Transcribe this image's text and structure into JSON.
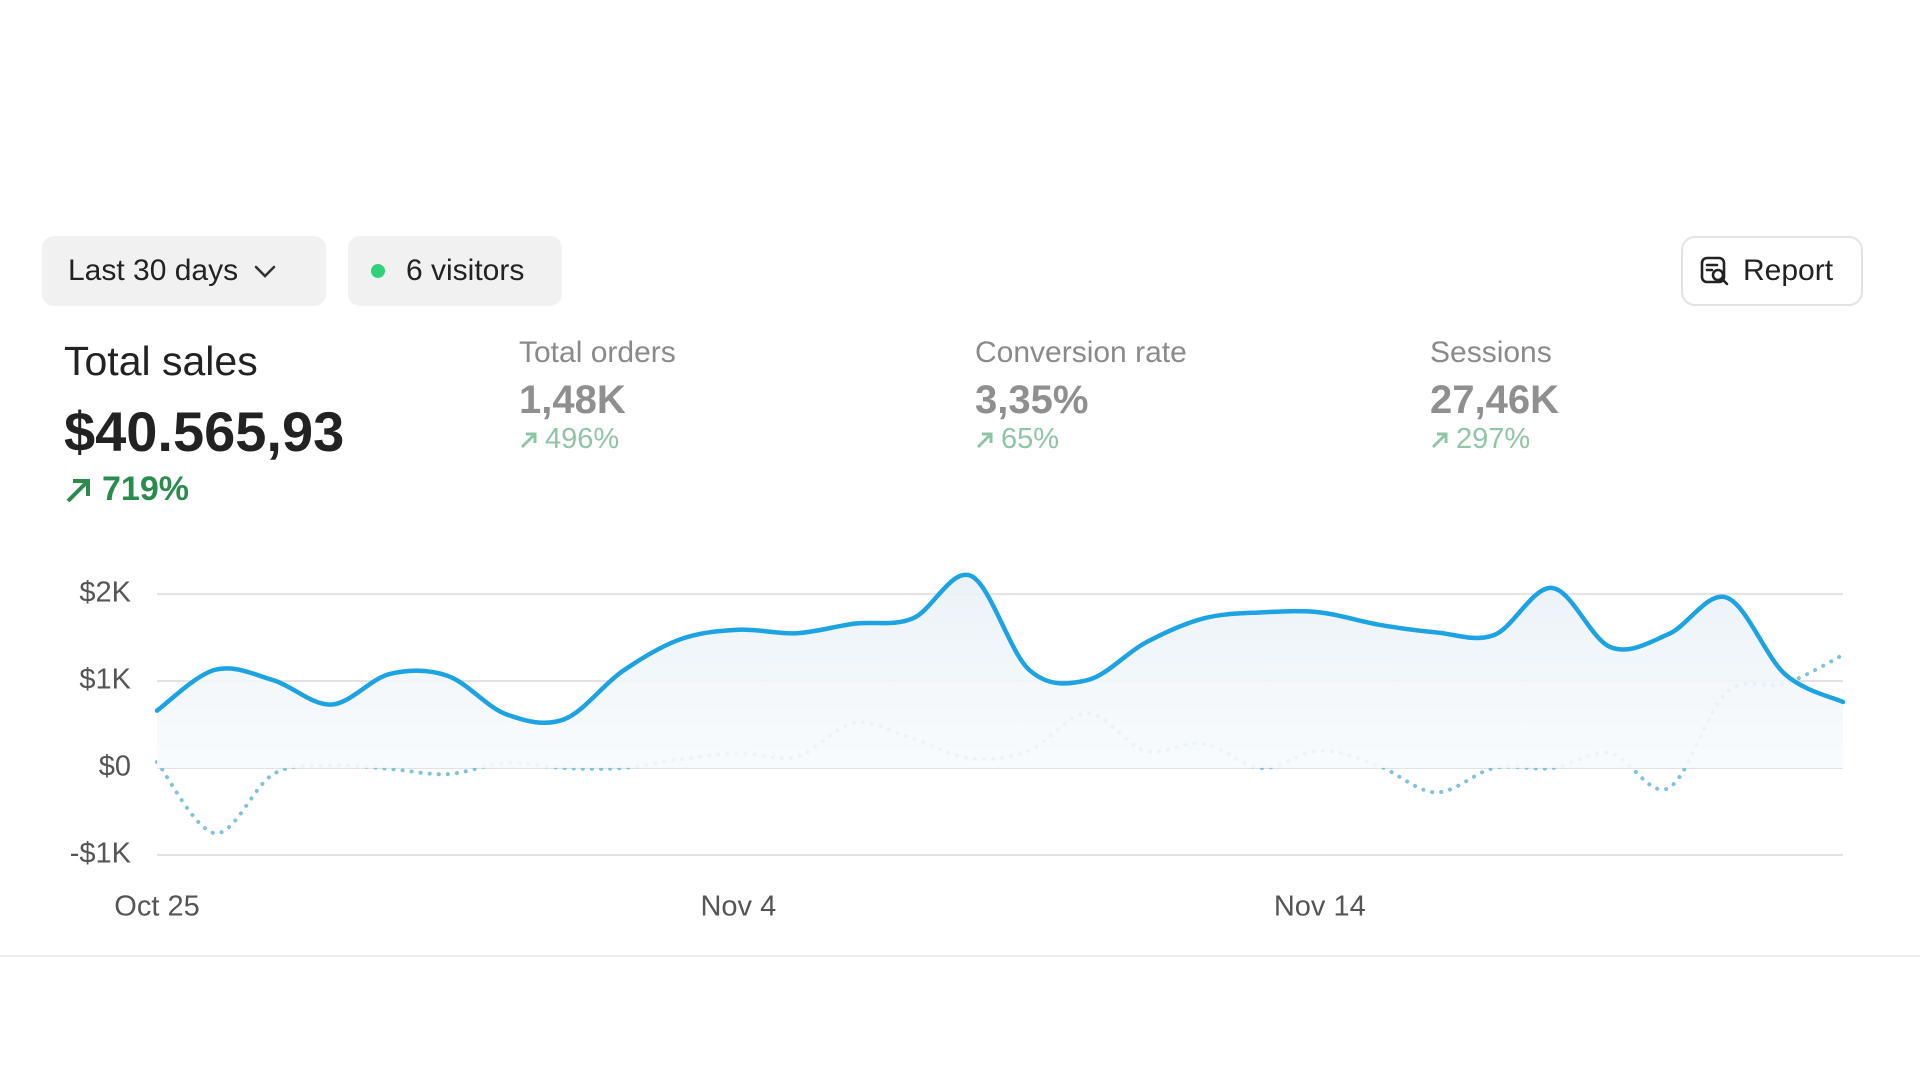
{
  "controls": {
    "range": "Last 30 days",
    "visitors": "6 visitors",
    "report": "Report"
  },
  "metrics": [
    {
      "label": "Total sales",
      "value": "$40.565,93",
      "change": "719%"
    },
    {
      "label": "Total orders",
      "value": "1,48K",
      "change": "496%"
    },
    {
      "label": "Conversion rate",
      "value": "3,35%",
      "change": "65%"
    },
    {
      "label": "Sessions",
      "value": "27,46K",
      "change": "297%"
    }
  ],
  "chart_data": {
    "type": "line",
    "categories": [
      "Oct 25",
      null,
      null,
      null,
      null,
      null,
      null,
      null,
      null,
      null,
      "Nov 4",
      null,
      null,
      null,
      null,
      null,
      null,
      null,
      null,
      null,
      "Nov 14",
      null,
      null,
      null,
      null,
      null,
      null,
      null,
      null,
      null
    ],
    "series": [
      {
        "color": "#1ea3e2",
        "values": [
          660,
          1130,
          1010,
          730,
          1080,
          1060,
          620,
          560,
          1110,
          1480,
          1590,
          1550,
          1660,
          1720,
          2210,
          1130,
          1010,
          1440,
          1720,
          1790,
          1790,
          1650,
          1560,
          1530,
          2070,
          1390,
          1540,
          1960,
          1080,
          760
        ]
      },
      {
        "color": "#7fc3da",
        "style": "dotted",
        "values": [
          70,
          -750,
          -70,
          30,
          -10,
          -70,
          60,
          0,
          0,
          100,
          170,
          130,
          520,
          340,
          110,
          200,
          630,
          200,
          280,
          0,
          200,
          30,
          -280,
          0,
          0,
          170,
          -230,
          870,
          970,
          1300
        ]
      }
    ],
    "ylim": [
      -1000,
      2300
    ],
    "yticks": [
      {
        "value": 2000,
        "label": "$2K"
      },
      {
        "value": 1000,
        "label": "$1K"
      },
      {
        "value": 0,
        "label": "$0"
      },
      {
        "value": -1000,
        "label": "-$1K"
      }
    ],
    "grid": true
  }
}
